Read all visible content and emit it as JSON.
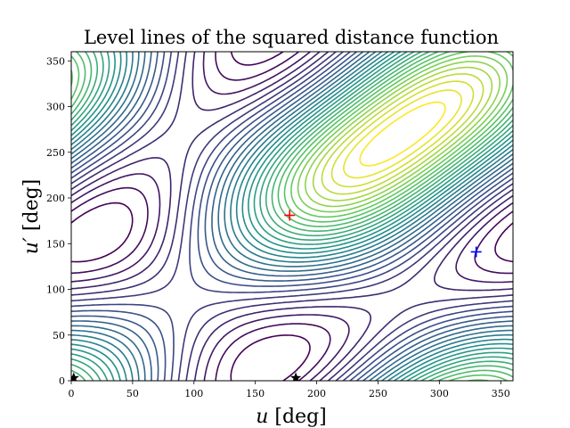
{
  "chart_data": {
    "type": "contour",
    "title": "Level lines of the squared distance function",
    "xlabel": {
      "var": "u",
      "unit": "[deg]"
    },
    "ylabel": {
      "var": "u′",
      "unit": "[deg]"
    },
    "xlim": [
      0,
      360
    ],
    "ylim": [
      0,
      360
    ],
    "xticks": [
      0,
      50,
      100,
      150,
      200,
      250,
      300,
      350
    ],
    "yticks": [
      0,
      50,
      100,
      150,
      200,
      250,
      300,
      350
    ],
    "grid": false,
    "colormap": "viridis",
    "colormap_stops": [
      "#440154",
      "#3b528b",
      "#21918c",
      "#5ec962",
      "#fde725"
    ],
    "markers": [
      {
        "symbol": "plus",
        "color": "#ff0000",
        "x": 178,
        "y": 181
      },
      {
        "symbol": "plus",
        "color": "#0000ff",
        "x": 330,
        "y": 141
      },
      {
        "symbol": "star",
        "color": "#000000",
        "x": 2,
        "y": 3
      },
      {
        "symbol": "star",
        "color": "#000000",
        "x": 183,
        "y": 3
      }
    ]
  }
}
